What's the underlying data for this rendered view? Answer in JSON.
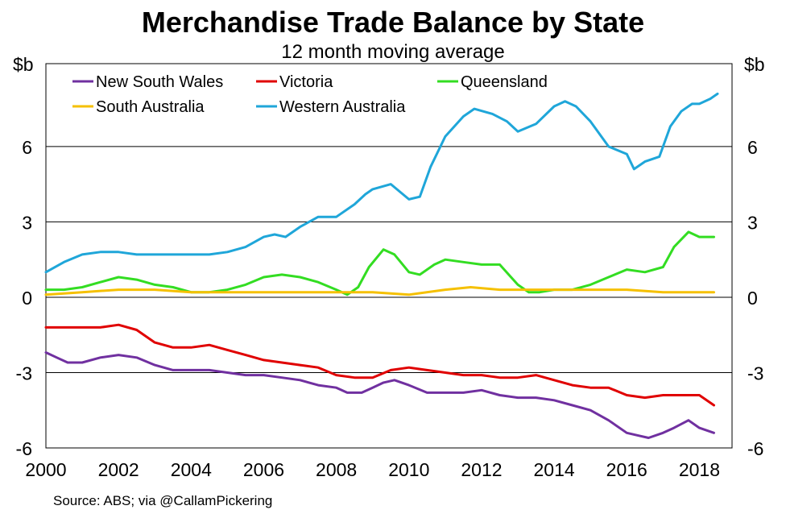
{
  "chart_data": {
    "type": "line",
    "title": "Merchandise Trade Balance by State",
    "subtitle": "12 month moving average",
    "ylabel_left": "$b",
    "ylabel_right": "$b",
    "xlabel": "",
    "ylim": [
      -6,
      9.3
    ],
    "xlim": [
      2000,
      2018.9
    ],
    "yticks": [
      -6,
      -3,
      0,
      3,
      6
    ],
    "xticks": [
      2000,
      2002,
      2004,
      2006,
      2008,
      2010,
      2012,
      2014,
      2016,
      2018
    ],
    "legend_position": "top-left",
    "source": "Source: ABS; via @CallamPickering",
    "series": [
      {
        "name": "New South Wales",
        "color": "#7030a0",
        "x": [
          2000.0,
          2000.3,
          2000.6,
          2001.0,
          2001.5,
          2002.0,
          2002.5,
          2003.0,
          2003.5,
          2004.0,
          2004.5,
          2005.0,
          2005.5,
          2006.0,
          2006.5,
          2007.0,
          2007.5,
          2008.0,
          2008.3,
          2008.7,
          2009.0,
          2009.3,
          2009.6,
          2010.0,
          2010.5,
          2011.0,
          2011.5,
          2012.0,
          2012.5,
          2013.0,
          2013.5,
          2014.0,
          2014.5,
          2015.0,
          2015.5,
          2016.0,
          2016.3,
          2016.6,
          2017.0,
          2017.3,
          2017.7,
          2018.0,
          2018.4
        ],
        "values": [
          -2.2,
          -2.4,
          -2.6,
          -2.6,
          -2.4,
          -2.3,
          -2.4,
          -2.7,
          -2.9,
          -2.9,
          -2.9,
          -3.0,
          -3.1,
          -3.1,
          -3.2,
          -3.3,
          -3.5,
          -3.6,
          -3.8,
          -3.8,
          -3.6,
          -3.4,
          -3.3,
          -3.5,
          -3.8,
          -3.8,
          -3.8,
          -3.7,
          -3.9,
          -4.0,
          -4.0,
          -4.1,
          -4.3,
          -4.5,
          -4.9,
          -5.4,
          -5.5,
          -5.6,
          -5.4,
          -5.2,
          -4.9,
          -5.2,
          -5.4
        ]
      },
      {
        "name": "Victoria",
        "color": "#e00000",
        "x": [
          2000.0,
          2000.5,
          2001.0,
          2001.5,
          2002.0,
          2002.5,
          2003.0,
          2003.5,
          2004.0,
          2004.5,
          2005.0,
          2005.5,
          2006.0,
          2006.5,
          2007.0,
          2007.5,
          2008.0,
          2008.5,
          2009.0,
          2009.5,
          2010.0,
          2010.5,
          2011.0,
          2011.5,
          2012.0,
          2012.5,
          2013.0,
          2013.5,
          2014.0,
          2014.5,
          2015.0,
          2015.5,
          2016.0,
          2016.5,
          2017.0,
          2017.5,
          2018.0,
          2018.4
        ],
        "values": [
          -1.2,
          -1.2,
          -1.2,
          -1.2,
          -1.1,
          -1.3,
          -1.8,
          -2.0,
          -2.0,
          -1.9,
          -2.1,
          -2.3,
          -2.5,
          -2.6,
          -2.7,
          -2.8,
          -3.1,
          -3.2,
          -3.2,
          -2.9,
          -2.8,
          -2.9,
          -3.0,
          -3.1,
          -3.1,
          -3.2,
          -3.2,
          -3.1,
          -3.3,
          -3.5,
          -3.6,
          -3.6,
          -3.9,
          -4.0,
          -3.9,
          -3.9,
          -3.9,
          -4.3
        ]
      },
      {
        "name": "Queensland",
        "color": "#33dd22",
        "x": [
          2000.0,
          2000.5,
          2001.0,
          2001.5,
          2002.0,
          2002.5,
          2003.0,
          2003.5,
          2004.0,
          2004.5,
          2005.0,
          2005.5,
          2006.0,
          2006.5,
          2007.0,
          2007.5,
          2008.0,
          2008.3,
          2008.6,
          2008.9,
          2009.3,
          2009.6,
          2010.0,
          2010.3,
          2010.7,
          2011.0,
          2011.5,
          2012.0,
          2012.5,
          2013.0,
          2013.3,
          2013.6,
          2014.0,
          2014.5,
          2015.0,
          2015.5,
          2016.0,
          2016.5,
          2017.0,
          2017.3,
          2017.7,
          2018.0,
          2018.4
        ],
        "values": [
          0.3,
          0.3,
          0.4,
          0.6,
          0.8,
          0.7,
          0.5,
          0.4,
          0.2,
          0.2,
          0.3,
          0.5,
          0.8,
          0.9,
          0.8,
          0.6,
          0.3,
          0.1,
          0.4,
          1.2,
          1.9,
          1.7,
          1.0,
          0.9,
          1.3,
          1.5,
          1.4,
          1.3,
          1.3,
          0.5,
          0.2,
          0.2,
          0.3,
          0.3,
          0.5,
          0.8,
          1.1,
          1.0,
          1.2,
          2.0,
          2.6,
          2.4,
          2.4
        ]
      },
      {
        "name": "South Australia",
        "color": "#f5c000",
        "x": [
          2000.0,
          2001.0,
          2002.0,
          2003.0,
          2004.0,
          2005.0,
          2006.0,
          2007.0,
          2008.0,
          2009.0,
          2010.0,
          2011.0,
          2011.7,
          2012.5,
          2013.0,
          2014.0,
          2015.0,
          2016.0,
          2017.0,
          2017.6,
          2018.0,
          2018.4
        ],
        "values": [
          0.1,
          0.2,
          0.3,
          0.3,
          0.2,
          0.2,
          0.2,
          0.2,
          0.2,
          0.2,
          0.1,
          0.3,
          0.4,
          0.3,
          0.3,
          0.3,
          0.3,
          0.3,
          0.2,
          0.2,
          0.2,
          0.2
        ]
      },
      {
        "name": "Western Australia",
        "color": "#1fa6d9",
        "x": [
          2000.0,
          2000.5,
          2001.0,
          2001.5,
          2002.0,
          2002.5,
          2003.0,
          2003.5,
          2004.0,
          2004.5,
          2005.0,
          2005.5,
          2006.0,
          2006.3,
          2006.6,
          2007.0,
          2007.5,
          2008.0,
          2008.5,
          2008.8,
          2009.0,
          2009.5,
          2010.0,
          2010.3,
          2010.6,
          2011.0,
          2011.5,
          2011.8,
          2012.3,
          2012.7,
          2013.0,
          2013.5,
          2014.0,
          2014.3,
          2014.6,
          2015.0,
          2015.5,
          2016.0,
          2016.2,
          2016.5,
          2016.9,
          2017.2,
          2017.5,
          2017.8,
          2018.0,
          2018.3,
          2018.5
        ],
        "values": [
          1.0,
          1.4,
          1.7,
          1.8,
          1.8,
          1.7,
          1.7,
          1.7,
          1.7,
          1.7,
          1.8,
          2.0,
          2.4,
          2.5,
          2.4,
          2.8,
          3.2,
          3.2,
          3.7,
          4.1,
          4.3,
          4.5,
          3.9,
          4.0,
          5.2,
          6.4,
          7.2,
          7.5,
          7.3,
          7.0,
          6.6,
          6.9,
          7.6,
          7.8,
          7.6,
          7.0,
          6.0,
          5.7,
          5.1,
          5.4,
          5.6,
          6.8,
          7.4,
          7.7,
          7.7,
          7.9,
          8.1
        ]
      }
    ]
  }
}
